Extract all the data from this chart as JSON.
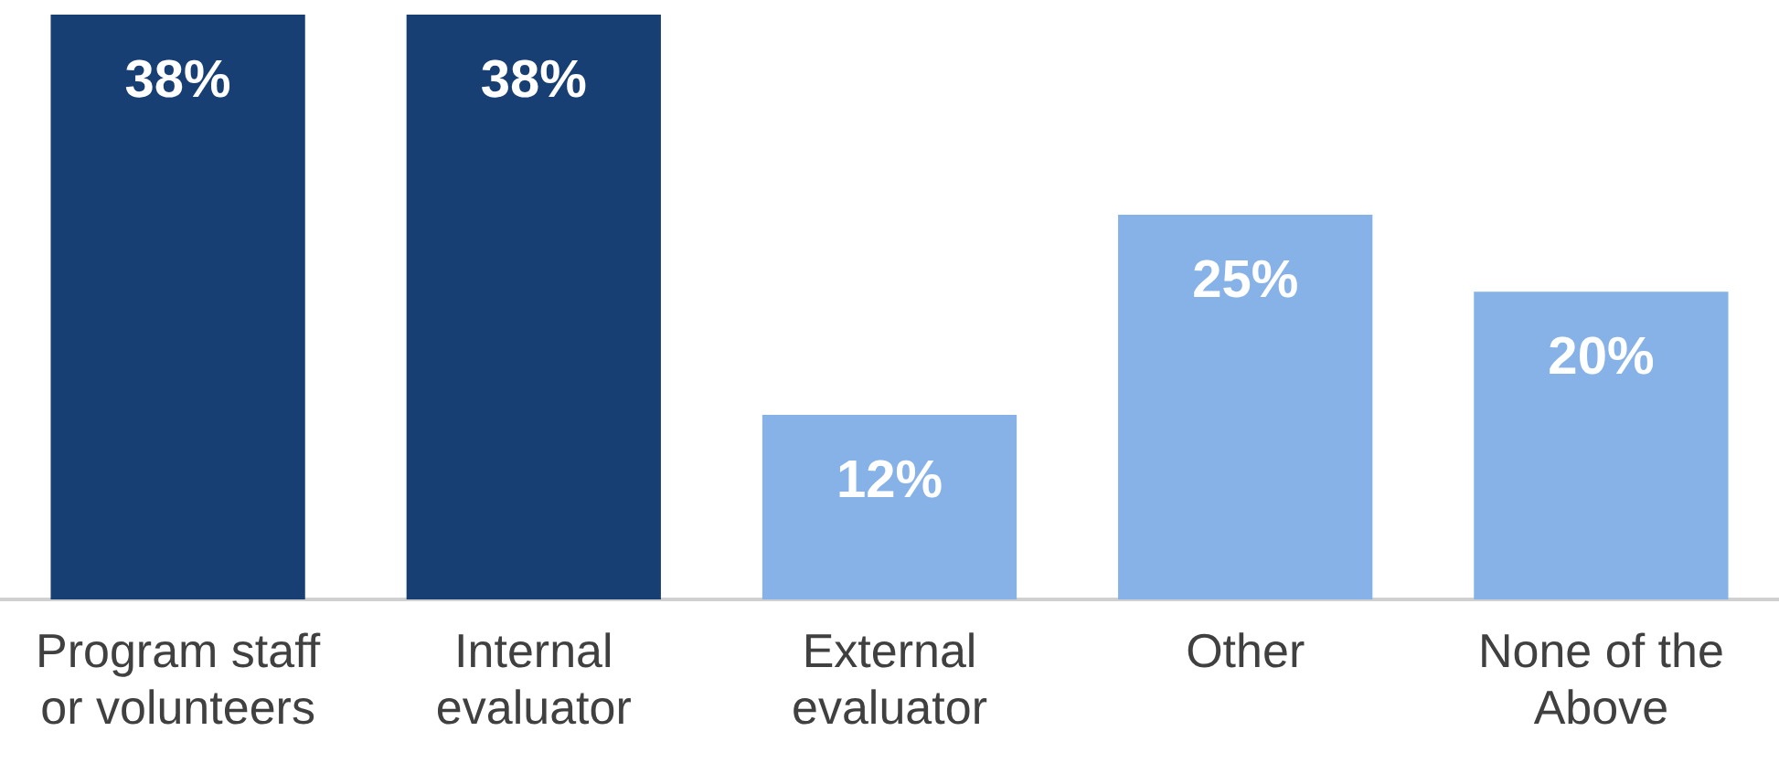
{
  "chart_data": {
    "type": "bar",
    "categories": [
      "Program staff or volunteers",
      "Internal evaluator",
      "External evaluator",
      "Other",
      "None of the Above"
    ],
    "values": [
      38,
      38,
      12,
      25,
      20
    ],
    "colors": [
      "#173f73",
      "#173f73",
      "#86b2e8",
      "#86b2e8",
      "#86b2e8"
    ],
    "value_labels": [
      "38%",
      "38%",
      "12%",
      "25%",
      "20%"
    ],
    "grid": false,
    "legend": false
  }
}
